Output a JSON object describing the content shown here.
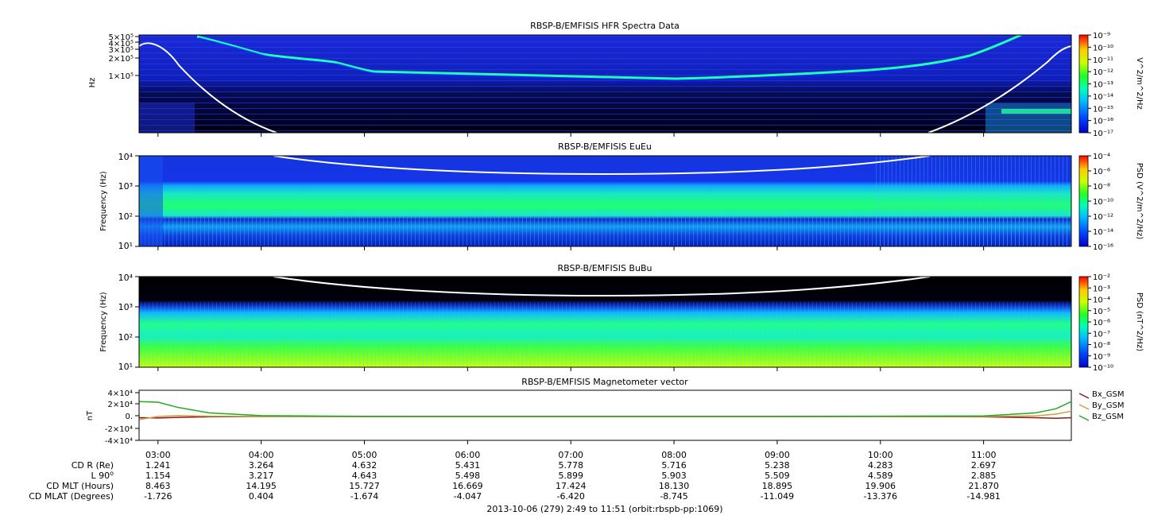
{
  "chart_data": [
    {
      "type": "heatmap",
      "title": "RBSP-B/EMFISIS  HFR Spectra Data",
      "ylabel": "Hz",
      "ytick_labels": [
        "5×10⁵",
        "4×10⁵",
        "3×10⁵",
        "2×10⁵",
        "1×10⁵"
      ],
      "colorbar_label": "V^2/m^2/Hz",
      "colorbar_ticks": [
        "10⁻⁹",
        "10⁻¹⁰",
        "10⁻¹¹",
        "10⁻¹²",
        "10⁻¹³",
        "10⁻¹⁴",
        "10⁻¹⁵",
        "10⁻¹⁶",
        "10⁻¹⁷"
      ],
      "colorbar_exponents": [
        -9,
        -10,
        -11,
        -12,
        -13,
        -14,
        -15,
        -16,
        -17
      ]
    },
    {
      "type": "heatmap",
      "title": "RBSP-B/EMFISIS  EuEu",
      "ylabel": "Frequency (Hz)",
      "ytick_labels": [
        "10⁴",
        "10³",
        "10²",
        "10¹"
      ],
      "colorbar_label": "PSD (V^2/m^2/Hz)",
      "colorbar_ticks": [
        "10⁻⁴",
        "10⁻⁶",
        "10⁻⁸",
        "10⁻¹⁰",
        "10⁻¹²",
        "10⁻¹⁴",
        "10⁻¹⁶"
      ],
      "colorbar_exponents": [
        -4,
        -6,
        -8,
        -10,
        -12,
        -14,
        -16
      ]
    },
    {
      "type": "heatmap",
      "title": "RBSP-B/EMFISIS  BuBu",
      "ylabel": "Frequency (Hz)",
      "ytick_labels": [
        "10⁴",
        "10³",
        "10²",
        "10¹"
      ],
      "colorbar_label": "PSD (nT^2/Hz)",
      "colorbar_ticks": [
        "10⁻²",
        "10⁻³",
        "10⁻⁴",
        "10⁻⁵",
        "10⁻⁶",
        "10⁻⁷",
        "10⁻⁸",
        "10⁻⁹",
        "10⁻¹⁰"
      ],
      "colorbar_exponents": [
        -2,
        -3,
        -4,
        -5,
        -6,
        -7,
        -8,
        -9,
        -10
      ]
    },
    {
      "type": "line",
      "title": "RBSP-B/EMFISIS  Magnetometer vector",
      "ylabel": "nT",
      "ytick_labels": [
        "4×10⁴",
        "2×10⁴",
        "0.",
        "-2×10⁴",
        "-4×10⁴"
      ],
      "ylim": [
        -40000,
        40000
      ],
      "x_hours": [
        2.82,
        3.0,
        3.2,
        3.5,
        4.0,
        5.0,
        6.0,
        7.0,
        8.0,
        9.0,
        10.0,
        11.0,
        11.5,
        11.7,
        11.85
      ],
      "series": [
        {
          "name": "Bx_GSM",
          "color": "#8b1a1a",
          "values": [
            -2000,
            -2500,
            -1500,
            -500,
            0,
            0,
            0,
            0,
            0,
            0,
            0,
            -500,
            -2000,
            -3000,
            -2000
          ]
        },
        {
          "name": "By_GSM",
          "color": "#c8a040",
          "values": [
            -5000,
            0,
            1500,
            500,
            0,
            0,
            0,
            0,
            0,
            0,
            0,
            0,
            1000,
            4000,
            9000
          ]
        },
        {
          "name": "Bz_GSM",
          "color": "#22aa22",
          "values": [
            25000,
            24000,
            15000,
            6000,
            1500,
            200,
            0,
            0,
            0,
            0,
            500,
            1000,
            6000,
            13000,
            25000
          ]
        }
      ]
    }
  ],
  "time_axis": {
    "start_hours": 2.8167,
    "end_hours": 11.85,
    "tick_hours": [
      3,
      4,
      5,
      6,
      7,
      8,
      9,
      10,
      11
    ],
    "tick_labels": [
      "03:00",
      "04:00",
      "05:00",
      "06:00",
      "07:00",
      "08:00",
      "09:00",
      "10:00",
      "11:00"
    ]
  },
  "ephemeris": {
    "labels": [
      "CD R (Re)",
      "L 90",
      "CD MLT (Hours)",
      "CD MLAT (Degrees)"
    ],
    "l_superscript": "o",
    "rows": [
      [
        "1.241",
        "3.264",
        "4.632",
        "5.431",
        "5.778",
        "5.716",
        "5.238",
        "4.283",
        "2.697"
      ],
      [
        "1.154",
        "3.217",
        "4.643",
        "5.498",
        "5.899",
        "5.903",
        "5.509",
        "4.589",
        "2.885"
      ],
      [
        "8.463",
        "14.195",
        "15.727",
        "16.669",
        "17.424",
        "18.130",
        "18.895",
        "19.906",
        "21.870"
      ],
      [
        "-1.726",
        "0.404",
        "-1.674",
        "-4.047",
        "-6.420",
        "-8.745",
        "-11.049",
        "-13.376",
        "-14.981"
      ]
    ]
  },
  "footer": "2013-10-06 (279) 2:49 to 11:51 (orbit:rbspb-pp:1069)"
}
